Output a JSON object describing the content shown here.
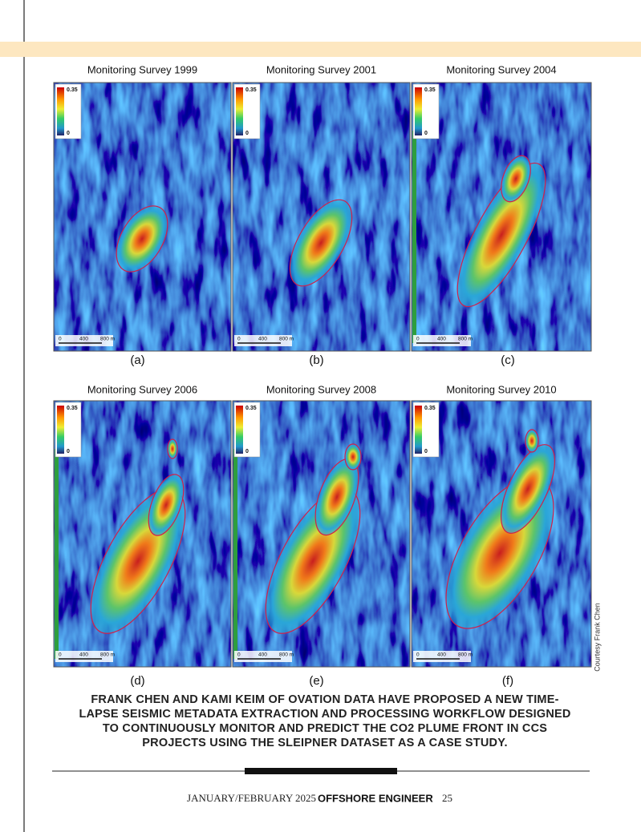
{
  "panels": [
    {
      "title": "Monitoring Survey 1999",
      "label": "(a)",
      "colorbar_max": "0.35",
      "colorbar_min": "0",
      "scale": [
        "0",
        "400",
        "800 m"
      ]
    },
    {
      "title": "Monitoring Survey 2001",
      "label": "(b)",
      "colorbar_max": "0.35",
      "colorbar_min": "0",
      "scale": [
        "0",
        "400",
        "800 m"
      ]
    },
    {
      "title": "Monitoring Survey 2004",
      "label": "(c)",
      "colorbar_max": "0.35",
      "colorbar_min": "0",
      "scale": [
        "0",
        "400",
        "800 m"
      ]
    },
    {
      "title": "Monitoring Survey 2006",
      "label": "(d)",
      "colorbar_max": "0.35",
      "colorbar_min": "0",
      "scale": [
        "0",
        "400",
        "800 m"
      ]
    },
    {
      "title": "Monitoring Survey 2008",
      "label": "(e)",
      "colorbar_max": "0.35",
      "colorbar_min": "0",
      "scale": [
        "0",
        "400",
        "800 m"
      ]
    },
    {
      "title": "Monitoring Survey 2010",
      "label": "(f)",
      "colorbar_max": "0.35",
      "colorbar_min": "0",
      "scale": [
        "0",
        "400",
        "800 m"
      ]
    }
  ],
  "credit": "Courtesy Frank Chen",
  "caption": [
    "FRANK CHEN AND KAMI KEIM OF OVATION DATA HAVE PROPOSED A NEW TIME-",
    "LAPSE SEISMIC METADATA EXTRACTION AND PROCESSING WORKFLOW DESIGNED",
    "TO CONTINUOUSLY MONITOR AND PREDICT THE CO2 PLUME FRONT IN CCS",
    "PROJECTS USING THE SLEIPNER DATASET AS A CASE STUDY."
  ],
  "footer": {
    "issue": "JANUARY/FEBRUARY 2025",
    "magazine": "OFFSHORE ENGINEER",
    "page": "25"
  }
}
